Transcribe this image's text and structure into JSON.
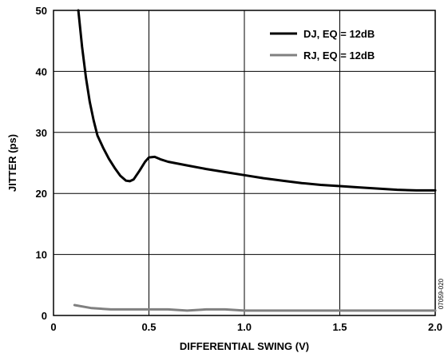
{
  "chart_data": {
    "type": "line",
    "xlabel": "DIFFERENTIAL SWING (V)",
    "ylabel": "JITTER (ps)",
    "xlim": [
      0,
      2.0
    ],
    "ylim": [
      0,
      50
    ],
    "xticks": [
      0,
      0.5,
      1.0,
      1.5,
      2.0
    ],
    "xtick_labels": [
      "0",
      "0.5",
      "1.0",
      "1.5",
      "2.0"
    ],
    "yticks": [
      0,
      10,
      20,
      30,
      40,
      50
    ],
    "ytick_labels": [
      "0",
      "10",
      "20",
      "30",
      "40",
      "50"
    ],
    "grid": true,
    "legend_position": "top-right",
    "series": [
      {
        "name": "DJ, EQ = 12dB",
        "color": "#000000",
        "points": [
          [
            0.13,
            50.0
          ],
          [
            0.15,
            44.0
          ],
          [
            0.17,
            39.0
          ],
          [
            0.19,
            35.0
          ],
          [
            0.21,
            32.0
          ],
          [
            0.23,
            29.5
          ],
          [
            0.26,
            27.5
          ],
          [
            0.29,
            25.7
          ],
          [
            0.32,
            24.2
          ],
          [
            0.35,
            22.9
          ],
          [
            0.38,
            22.1
          ],
          [
            0.4,
            22.0
          ],
          [
            0.42,
            22.3
          ],
          [
            0.45,
            23.7
          ],
          [
            0.48,
            25.2
          ],
          [
            0.5,
            25.9
          ],
          [
            0.53,
            26.0
          ],
          [
            0.56,
            25.6
          ],
          [
            0.6,
            25.2
          ],
          [
            0.7,
            24.6
          ],
          [
            0.8,
            24.0
          ],
          [
            0.9,
            23.5
          ],
          [
            1.0,
            23.0
          ],
          [
            1.1,
            22.5
          ],
          [
            1.2,
            22.1
          ],
          [
            1.3,
            21.7
          ],
          [
            1.4,
            21.4
          ],
          [
            1.5,
            21.2
          ],
          [
            1.6,
            21.0
          ],
          [
            1.7,
            20.8
          ],
          [
            1.8,
            20.6
          ],
          [
            1.9,
            20.5
          ],
          [
            2.0,
            20.5
          ]
        ]
      },
      {
        "name": "RJ, EQ = 12dB",
        "color": "#808080",
        "points": [
          [
            0.11,
            1.7
          ],
          [
            0.2,
            1.2
          ],
          [
            0.3,
            1.0
          ],
          [
            0.4,
            1.0
          ],
          [
            0.5,
            1.0
          ],
          [
            0.6,
            1.0
          ],
          [
            0.7,
            0.8
          ],
          [
            0.8,
            1.0
          ],
          [
            0.9,
            1.0
          ],
          [
            1.0,
            0.8
          ],
          [
            1.2,
            0.8
          ],
          [
            1.4,
            0.8
          ],
          [
            1.6,
            0.8
          ],
          [
            1.8,
            0.8
          ],
          [
            2.0,
            0.8
          ]
        ]
      }
    ]
  },
  "figure_code": "07059-020"
}
